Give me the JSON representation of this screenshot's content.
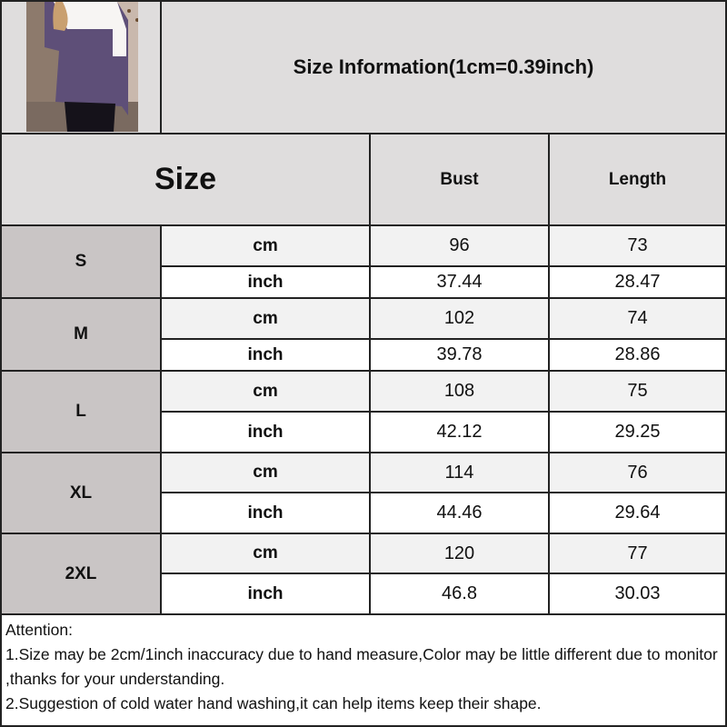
{
  "title": "Size Information(1cm=0.39inch)",
  "headers": {
    "size": "Size",
    "bust": "Bust",
    "length": "Length"
  },
  "units": {
    "cm": "cm",
    "inch": "inch"
  },
  "rows": [
    {
      "size": "S",
      "cm": {
        "bust": "96",
        "length": "73"
      },
      "inch": {
        "bust": "37.44",
        "length": "28.47"
      }
    },
    {
      "size": "M",
      "cm": {
        "bust": "102",
        "length": "74"
      },
      "inch": {
        "bust": "39.78",
        "length": "28.86"
      }
    },
    {
      "size": "L",
      "cm": {
        "bust": "108",
        "length": "75"
      },
      "inch": {
        "bust": "42.12",
        "length": "29.25"
      }
    },
    {
      "size": "XL",
      "cm": {
        "bust": "114",
        "length": "76"
      },
      "inch": {
        "bust": "44.46",
        "length": "29.64"
      }
    },
    {
      "size": "2XL",
      "cm": {
        "bust": "120",
        "length": "77"
      },
      "inch": {
        "bust": "46.8",
        "length": "30.03"
      }
    }
  ],
  "notes": [
    "Attention:",
    "1.Size may be 2cm/1inch inaccuracy due to hand measure,Color may be little different due to monitor ,thanks for your understanding.",
    "2.Suggestion of cold water hand washing,it can help items keep their shape."
  ],
  "colors": {
    "header_bg": "#dfdddd",
    "size_col_bg": "#c9c5c5",
    "cm_row_bg": "#f2f2f2",
    "shirt": "#5e4f78"
  }
}
